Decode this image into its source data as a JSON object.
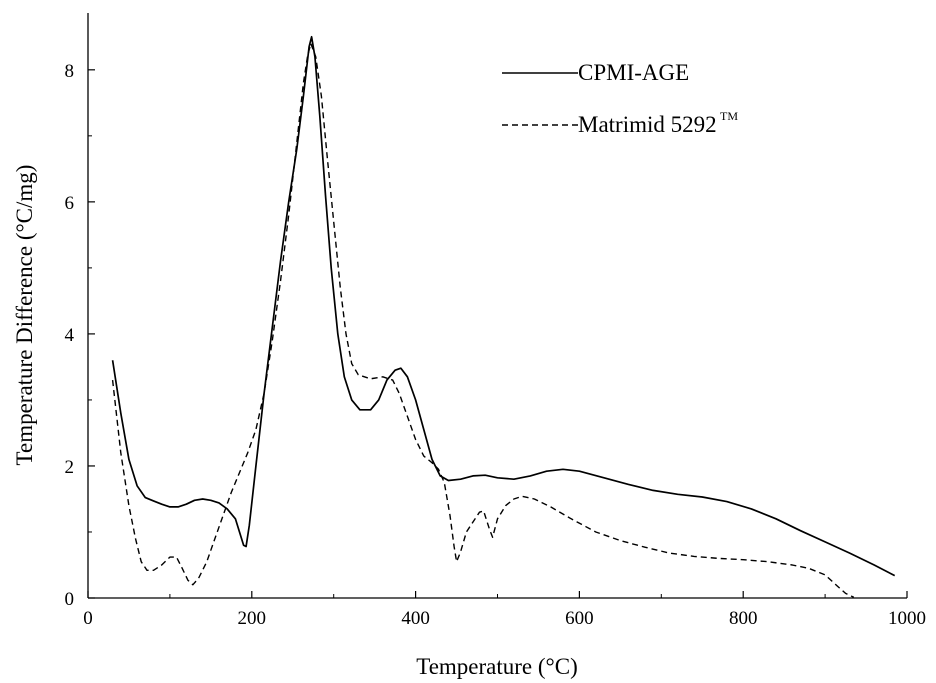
{
  "chart_data": {
    "type": "line",
    "title": "",
    "xlabel": "Temperature (°C)",
    "ylabel": "Temperature Difference (°C/mg)",
    "xlim": [
      0,
      1000
    ],
    "ylim": [
      0,
      8.8
    ],
    "xticks": [
      0,
      200,
      400,
      600,
      800,
      1000
    ],
    "yticks": [
      0,
      2,
      4,
      6,
      8
    ],
    "xtick_labels": [
      "0",
      "200",
      "400",
      "600",
      "800",
      "1000"
    ],
    "ytick_labels": [
      "0",
      "2",
      "4",
      "6",
      "8"
    ],
    "grid": false,
    "legend_position": "top-right",
    "series": [
      {
        "name": "CPMI-AGE",
        "style": "solid",
        "points": [
          [
            30,
            3.6
          ],
          [
            40,
            2.8
          ],
          [
            50,
            2.1
          ],
          [
            60,
            1.7
          ],
          [
            70,
            1.52
          ],
          [
            80,
            1.47
          ],
          [
            90,
            1.42
          ],
          [
            100,
            1.38
          ],
          [
            110,
            1.38
          ],
          [
            120,
            1.42
          ],
          [
            130,
            1.48
          ],
          [
            140,
            1.5
          ],
          [
            150,
            1.48
          ],
          [
            160,
            1.44
          ],
          [
            170,
            1.35
          ],
          [
            180,
            1.2
          ],
          [
            185,
            1.0
          ],
          [
            190,
            0.8
          ],
          [
            193,
            0.78
          ],
          [
            197,
            1.1
          ],
          [
            205,
            2.0
          ],
          [
            215,
            3.1
          ],
          [
            225,
            4.1
          ],
          [
            235,
            5.1
          ],
          [
            245,
            6.0
          ],
          [
            255,
            6.8
          ],
          [
            263,
            7.6
          ],
          [
            270,
            8.35
          ],
          [
            273,
            8.5
          ],
          [
            277,
            8.2
          ],
          [
            283,
            7.3
          ],
          [
            290,
            6.1
          ],
          [
            297,
            5.0
          ],
          [
            305,
            4.0
          ],
          [
            313,
            3.35
          ],
          [
            322,
            3.0
          ],
          [
            332,
            2.85
          ],
          [
            345,
            2.85
          ],
          [
            355,
            3.0
          ],
          [
            365,
            3.3
          ],
          [
            375,
            3.45
          ],
          [
            382,
            3.48
          ],
          [
            390,
            3.35
          ],
          [
            400,
            3.0
          ],
          [
            410,
            2.55
          ],
          [
            420,
            2.1
          ],
          [
            430,
            1.85
          ],
          [
            440,
            1.78
          ],
          [
            455,
            1.8
          ],
          [
            470,
            1.85
          ],
          [
            485,
            1.86
          ],
          [
            500,
            1.82
          ],
          [
            520,
            1.8
          ],
          [
            540,
            1.85
          ],
          [
            560,
            1.92
          ],
          [
            580,
            1.95
          ],
          [
            600,
            1.92
          ],
          [
            630,
            1.82
          ],
          [
            660,
            1.72
          ],
          [
            690,
            1.63
          ],
          [
            720,
            1.57
          ],
          [
            750,
            1.53
          ],
          [
            780,
            1.46
          ],
          [
            810,
            1.35
          ],
          [
            840,
            1.2
          ],
          [
            870,
            1.02
          ],
          [
            900,
            0.85
          ],
          [
            930,
            0.68
          ],
          [
            960,
            0.5
          ],
          [
            985,
            0.34
          ]
        ]
      },
      {
        "name": "Matrimid 5292™",
        "style": "dashed",
        "points": [
          [
            30,
            3.3
          ],
          [
            40,
            2.2
          ],
          [
            50,
            1.4
          ],
          [
            58,
            0.9
          ],
          [
            65,
            0.55
          ],
          [
            72,
            0.42
          ],
          [
            80,
            0.42
          ],
          [
            90,
            0.5
          ],
          [
            100,
            0.62
          ],
          [
            108,
            0.62
          ],
          [
            115,
            0.45
          ],
          [
            122,
            0.27
          ],
          [
            128,
            0.2
          ],
          [
            135,
            0.3
          ],
          [
            145,
            0.55
          ],
          [
            155,
            0.9
          ],
          [
            165,
            1.25
          ],
          [
            175,
            1.6
          ],
          [
            185,
            1.9
          ],
          [
            195,
            2.2
          ],
          [
            205,
            2.55
          ],
          [
            215,
            3.1
          ],
          [
            225,
            3.9
          ],
          [
            235,
            4.8
          ],
          [
            245,
            5.8
          ],
          [
            255,
            6.9
          ],
          [
            263,
            7.8
          ],
          [
            268,
            8.2
          ],
          [
            272,
            8.4
          ],
          [
            278,
            8.2
          ],
          [
            285,
            7.6
          ],
          [
            292,
            6.7
          ],
          [
            300,
            5.7
          ],
          [
            308,
            4.7
          ],
          [
            315,
            4.0
          ],
          [
            322,
            3.55
          ],
          [
            330,
            3.38
          ],
          [
            345,
            3.32
          ],
          [
            360,
            3.35
          ],
          [
            372,
            3.3
          ],
          [
            380,
            3.1
          ],
          [
            390,
            2.75
          ],
          [
            400,
            2.4
          ],
          [
            410,
            2.15
          ],
          [
            420,
            2.05
          ],
          [
            428,
            1.95
          ],
          [
            435,
            1.75
          ],
          [
            442,
            1.25
          ],
          [
            447,
            0.78
          ],
          [
            450,
            0.55
          ],
          [
            455,
            0.7
          ],
          [
            462,
            1.0
          ],
          [
            470,
            1.15
          ],
          [
            478,
            1.3
          ],
          [
            483,
            1.32
          ],
          [
            490,
            1.05
          ],
          [
            494,
            0.92
          ],
          [
            500,
            1.2
          ],
          [
            510,
            1.4
          ],
          [
            520,
            1.5
          ],
          [
            530,
            1.54
          ],
          [
            545,
            1.5
          ],
          [
            565,
            1.38
          ],
          [
            590,
            1.2
          ],
          [
            620,
            1.0
          ],
          [
            650,
            0.87
          ],
          [
            680,
            0.77
          ],
          [
            710,
            0.68
          ],
          [
            740,
            0.63
          ],
          [
            770,
            0.6
          ],
          [
            800,
            0.58
          ],
          [
            830,
            0.55
          ],
          [
            860,
            0.5
          ],
          [
            880,
            0.45
          ],
          [
            900,
            0.35
          ],
          [
            915,
            0.18
          ],
          [
            925,
            0.07
          ],
          [
            935,
            0.01
          ]
        ]
      }
    ]
  },
  "legend": {
    "items": [
      {
        "label": "CPMI-AGE",
        "sup": "",
        "style": "solid"
      },
      {
        "label": "Matrimid 5292",
        "sup": "TM",
        "style": "dashed"
      }
    ]
  }
}
